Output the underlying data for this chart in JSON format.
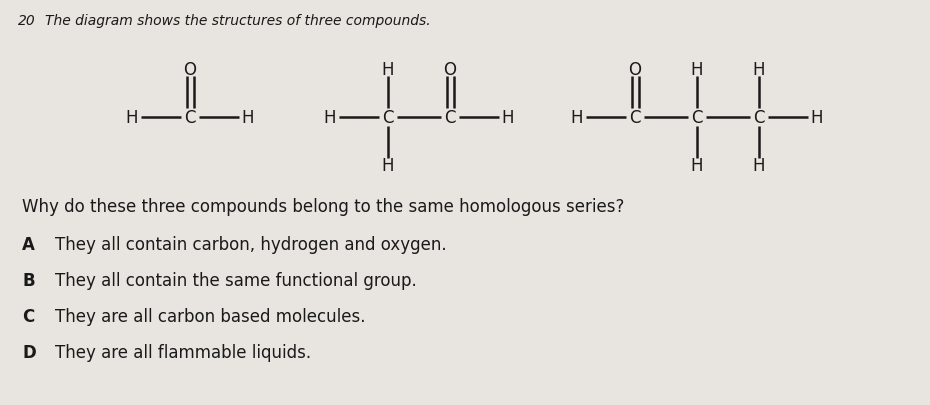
{
  "bg_color": "#e8e4df",
  "text_color": "#1a1a1a",
  "question_number": "20",
  "question_text": "The diagram shows the structures of three compounds.",
  "question2": "Why do these three compounds belong to the same homologous series?",
  "options": [
    [
      "A",
      "They all contain carbon, hydrogen and oxygen."
    ],
    [
      "B",
      "They all contain the same functional group."
    ],
    [
      "C",
      "They are all carbon based molecules."
    ],
    [
      "D",
      "They are all flammable liquids."
    ]
  ],
  "fig_width": 9.3,
  "fig_height": 4.06,
  "dpi": 100
}
